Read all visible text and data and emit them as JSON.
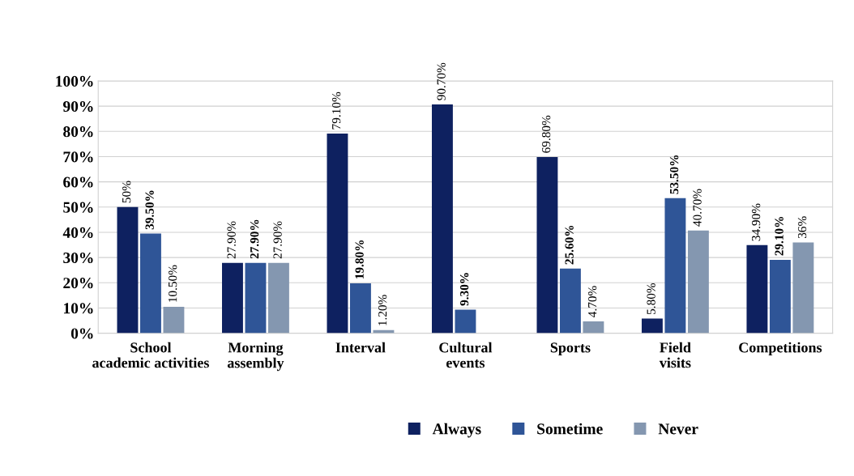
{
  "chart_data": {
    "type": "bar",
    "categories": [
      "School academic activities",
      "Morning assembly",
      "Interval",
      "Cultural events",
      "Sports",
      "Field visits",
      "Competitions"
    ],
    "series": [
      {
        "name": "Always",
        "color": "#0e2160",
        "values": [
          50,
          27.9,
          79.1,
          90.7,
          69.8,
          5.8,
          34.9
        ],
        "value_labels": [
          "50%",
          "27.90%",
          "79.10%",
          "90.70%",
          "69.80%",
          "5.80%",
          "34.90%"
        ]
      },
      {
        "name": "Sometime",
        "color": "#2f5597",
        "values": [
          39.5,
          27.9,
          19.8,
          9.3,
          25.6,
          53.5,
          29.1
        ],
        "value_labels": [
          "39.50%",
          "27.90%",
          "19.80%",
          "9.30%",
          "25.60%",
          "53.50%",
          "29.10%"
        ]
      },
      {
        "name": "Never",
        "color": "#8497b0",
        "values": [
          10.5,
          27.9,
          1.2,
          null,
          4.7,
          40.7,
          36
        ],
        "value_labels": [
          "10.50%",
          "27.90%",
          "1.20%",
          null,
          "4.70%",
          "40.70%",
          "36%"
        ]
      }
    ],
    "ylim": [
      0,
      100
    ],
    "yticks": [
      {
        "value": 0,
        "label": "0%"
      },
      {
        "value": 10,
        "label": "10%"
      },
      {
        "value": 20,
        "label": "20%"
      },
      {
        "value": 30,
        "label": "30%"
      },
      {
        "value": 40,
        "label": "40%"
      },
      {
        "value": 50,
        "label": "50%"
      },
      {
        "value": 60,
        "label": "60%"
      },
      {
        "value": 70,
        "label": "70%"
      },
      {
        "value": 80,
        "label": "80%"
      },
      {
        "value": 90,
        "label": "90%"
      },
      {
        "value": 100,
        "label": "100%"
      }
    ],
    "grid": "y",
    "legend": "bottom"
  }
}
